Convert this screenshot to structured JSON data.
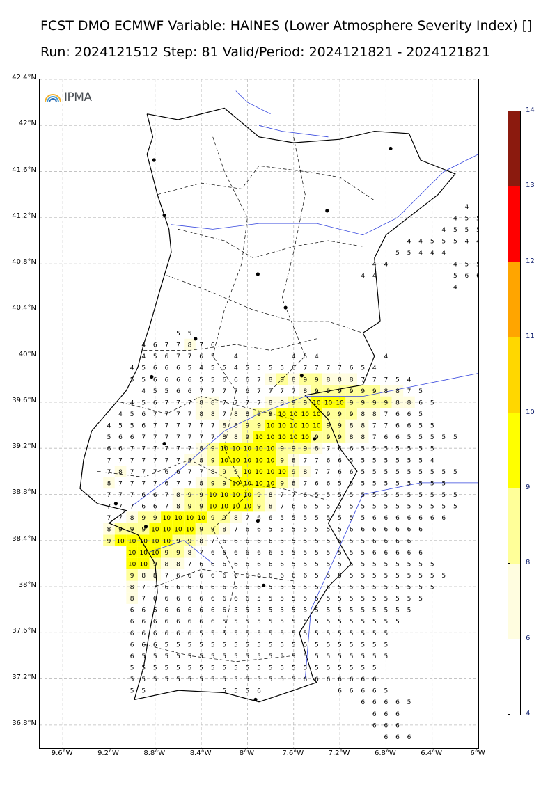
{
  "title": {
    "line1": "FCST DMO ECMWF Variable: HAINES (Lower Atmosphere Severity Index) []",
    "line2": "Run: 2024121512 Step: 81 Valid/Period: 2024121821 - 2024121821"
  },
  "logo": {
    "text": "IPMA",
    "icon": "rainbow-arc-icon"
  },
  "axes": {
    "lat_labels": [
      "42.4°N",
      "42°N",
      "41.6°N",
      "41.2°N",
      "40.8°N",
      "40.4°N",
      "40°N",
      "39.6°N",
      "39.2°N",
      "38.8°N",
      "38.4°N",
      "38°N",
      "37.6°N",
      "37.2°N",
      "36.8°N"
    ],
    "lon_labels": [
      "9.6°W",
      "9.2°W",
      "8.8°W",
      "8.4°W",
      "8°W",
      "7.6°W",
      "7.2°W",
      "6.8°W",
      "6.4°W",
      "6°W"
    ],
    "lat_range": [
      36.6,
      42.4
    ],
    "lon_range": [
      -9.8,
      -6.0
    ],
    "grid": "dashed"
  },
  "colorbar": {
    "ticks": [
      "14",
      "13",
      "12",
      "11",
      "10",
      "9",
      "8",
      "6",
      "4"
    ],
    "colors": [
      "#8b1a0e",
      "#ff0000",
      "#ffa500",
      "#ffd700",
      "#ffff00",
      "#ffff99",
      "#fffde0",
      "#ffffff"
    ]
  },
  "cities": [
    {
      "lon": -8.81,
      "lat": 41.7
    },
    {
      "lon": -8.72,
      "lat": 41.22
    },
    {
      "lon": -8.45,
      "lat": 40.15
    },
    {
      "lon": -7.91,
      "lat": 40.71
    },
    {
      "lon": -7.67,
      "lat": 40.42
    },
    {
      "lon": -6.76,
      "lat": 41.8
    },
    {
      "lon": -7.31,
      "lat": 41.26
    },
    {
      "lon": -8.83,
      "lat": 39.82
    },
    {
      "lon": -8.72,
      "lat": 39.24
    },
    {
      "lon": -7.42,
      "lat": 39.28
    },
    {
      "lon": -7.53,
      "lat": 39.83
    },
    {
      "lon": -9.14,
      "lat": 38.72
    },
    {
      "lon": -8.88,
      "lat": 38.52
    },
    {
      "lon": -7.91,
      "lat": 38.57
    },
    {
      "lon": -7.86,
      "lat": 38.01
    },
    {
      "lon": -7.93,
      "lat": 37.02
    }
  ],
  "chart_data": {
    "type": "heatmap",
    "title": "HAINES (Lower Atmosphere Severity Index)",
    "grid_start_lon": -9.2,
    "grid_step_lon": 0.1,
    "grid_start_lat": 40.2,
    "grid_step_lat": -0.1,
    "rows": [
      "......55..............................",
      "...4677876............................",
      "...4567765.4....454.....4..............",
      "..4566654554555567777654..............",
      "..5566665566678989988877754...........",
      "...4556677776777789999998875.........",
      "..456777887777889910101099998865.....",
      ".4567777887889910101010999887665.....",
      "4556777777889910101010109988776655...",
      "566777777788910101010109998876655555",
      "6677777789101010101099987665555555...",
      "7777777889101010101098776655555554..",
      "78777667789910101010987766555555555.",
      "8777767789910101010987665555555555..",
      "77766789910101010987765555555555555.",
      "77766789910101010987665555555555555",
      "7789910101010998766555555556666666",
      "89991010101099876655555556666666",
      "91010101010998766666555555556666",
      "..10101099876666665555555566666",
      "..10109887666666665555555555555",
      "..9887666666666666555555555555",
      "..877666666666555555555555555",
      "..87666666666555555555555555",
      "..6666666665555555555555555",
      "..666666665555555555555555",
      "..66666655555555555555555",
      "..66655555555555555555555",
      "..65555555555555555555555",
      "..5555555555555555555555",
      "..5555555555555556666666",
      "..55......5556......66665",
      "......................66665",
      ".......................666",
      ".......................666",
      "........................666"
    ],
    "north_values": [
      {
        "lon": -6.1,
        "lat": 41.3,
        "v": 4
      },
      {
        "lon": -6.2,
        "lat": 41.2,
        "v": 4
      },
      {
        "lon": -6.1,
        "lat": 41.2,
        "v": 5
      },
      {
        "lon": -6.0,
        "lat": 41.2,
        "v": 5
      },
      {
        "lon": -6.3,
        "lat": 41.1,
        "v": 4
      },
      {
        "lon": -6.2,
        "lat": 41.1,
        "v": 5
      },
      {
        "lon": -6.1,
        "lat": 41.1,
        "v": 5
      },
      {
        "lon": -6.0,
        "lat": 41.1,
        "v": 5
      },
      {
        "lon": -6.6,
        "lat": 41.0,
        "v": 4
      },
      {
        "lon": -6.5,
        "lat": 41.0,
        "v": 4
      },
      {
        "lon": -6.4,
        "lat": 41.0,
        "v": 5
      },
      {
        "lon": -6.3,
        "lat": 41.0,
        "v": 5
      },
      {
        "lon": -6.2,
        "lat": 41.0,
        "v": 5
      },
      {
        "lon": -6.1,
        "lat": 41.0,
        "v": 4
      },
      {
        "lon": -6.0,
        "lat": 41.0,
        "v": 4
      },
      {
        "lon": -6.7,
        "lat": 40.9,
        "v": 5
      },
      {
        "lon": -6.6,
        "lat": 40.9,
        "v": 5
      },
      {
        "lon": -6.5,
        "lat": 40.9,
        "v": 4
      },
      {
        "lon": -6.4,
        "lat": 40.9,
        "v": 4
      },
      {
        "lon": -6.3,
        "lat": 40.9,
        "v": 4
      },
      {
        "lon": -6.9,
        "lat": 40.8,
        "v": 4
      },
      {
        "lon": -6.8,
        "lat": 40.8,
        "v": 4
      },
      {
        "lon": -6.2,
        "lat": 40.8,
        "v": 4
      },
      {
        "lon": -6.1,
        "lat": 40.8,
        "v": 5
      },
      {
        "lon": -6.0,
        "lat": 40.8,
        "v": 5
      },
      {
        "lon": -7.0,
        "lat": 40.7,
        "v": 4
      },
      {
        "lon": -6.9,
        "lat": 40.7,
        "v": 4
      },
      {
        "lon": -6.2,
        "lat": 40.7,
        "v": 5
      },
      {
        "lon": -6.1,
        "lat": 40.7,
        "v": 6
      },
      {
        "lon": -6.0,
        "lat": 40.7,
        "v": 6
      },
      {
        "lon": -6.2,
        "lat": 40.6,
        "v": 4
      }
    ]
  }
}
